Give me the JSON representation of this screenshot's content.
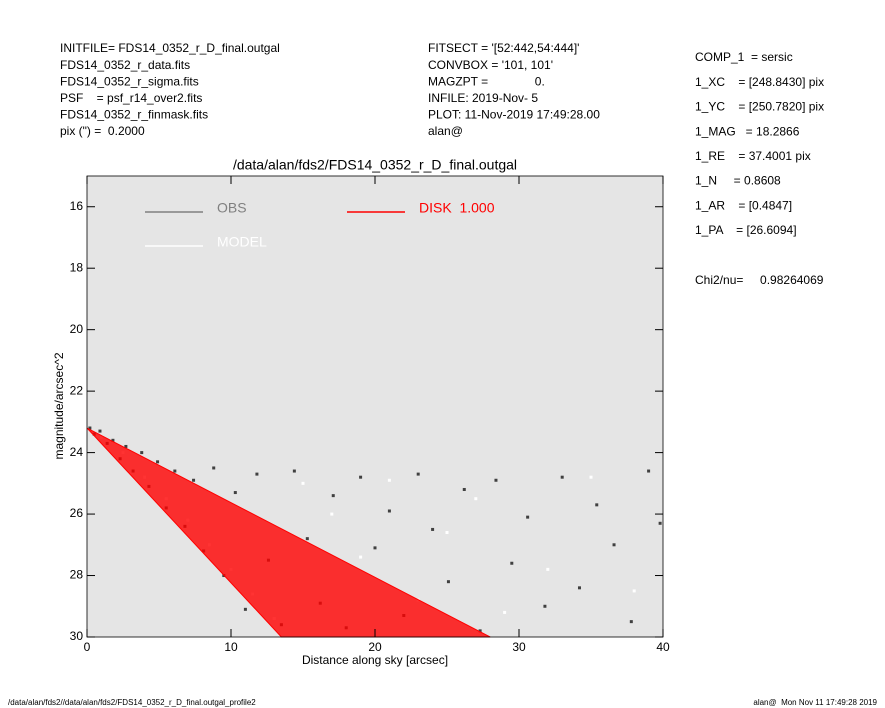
{
  "header": {
    "left": [
      "INITFILE= FDS14_0352_r_D_final.outgal",
      "FDS14_0352_r_data.fits",
      "FDS14_0352_r_sigma.fits",
      "PSF    = psf_r14_over2.fits",
      "FDS14_0352_r_finmask.fits",
      "pix (\") =  0.2000"
    ],
    "middle": [
      "FITSECT = '[52:442,54:444]'",
      "CONVBOX = '101, 101'",
      "MAGZPT =              0.",
      "INFILE: 2019-Nov- 5",
      "PLOT: 11-Nov-2019 17:49:28.00",
      "alan@"
    ],
    "right": [
      "COMP_1  = sersic",
      "1_XC    = [248.8430] pix",
      "1_YC    = [250.7820] pix",
      "1_MAG   = 18.2866",
      "1_RE    = 37.4001 pix",
      "1_N     = 0.8608",
      "1_AR    = [0.4847]",
      "1_PA    = [26.6094]"
    ],
    "chi2": "Chi2/nu=     0.98264069"
  },
  "footer": {
    "left": "/data/alan/fds2//data/alan/fds2/FDS14_0352_r_D_final.outgal_profile2",
    "right": "alan@  Mon Nov 11 17:49:28 2019"
  },
  "chart_data": {
    "type": "scatter",
    "title": "/data/alan/fds2/FDS14_0352_r_D_final.outgal",
    "x_label": "Distance along sky [arcsec]",
    "y_label": "magnitude/arcsec^2",
    "xlim": [
      0,
      40
    ],
    "xticks": [
      0,
      10,
      20,
      30,
      40
    ],
    "ylim": [
      30,
      15
    ],
    "yticks": [
      16,
      18,
      20,
      22,
      24,
      26,
      28,
      30
    ],
    "series": [
      {
        "name": "OBS",
        "color": "#404040",
        "legend_color": "#808080",
        "x": [
          0.2,
          0.5,
          0.9,
          1.4,
          1.8,
          2.3,
          2.7,
          3.2,
          3.8,
          4.3,
          4.9,
          5.5,
          6.1,
          6.8,
          7.4,
          8.1,
          8.8,
          9.5,
          10.3,
          11.0,
          11.8,
          12.6,
          13.5,
          14.4,
          15.3,
          16.2,
          17.1,
          18.0,
          19.0,
          20.0,
          21.0,
          22.0,
          23.0,
          24.0,
          25.1,
          26.2,
          27.3,
          28.4,
          29.5,
          30.6,
          31.8,
          33.0,
          34.2,
          35.4,
          36.6,
          37.8,
          39.0,
          39.8
        ],
        "values": [
          23.2,
          23.4,
          23.3,
          23.7,
          23.6,
          24.2,
          23.8,
          24.6,
          24.0,
          25.1,
          24.3,
          25.8,
          24.6,
          26.4,
          24.9,
          27.2,
          24.5,
          28.0,
          25.3,
          29.1,
          24.7,
          27.5,
          29.6,
          24.6,
          26.8,
          28.9,
          25.4,
          29.7,
          24.8,
          27.1,
          25.9,
          29.3,
          24.7,
          26.5,
          28.2,
          25.2,
          29.8,
          24.9,
          27.6,
          26.1,
          29.0,
          24.8,
          28.4,
          25.7,
          27.0,
          29.5,
          24.6,
          26.3
        ]
      },
      {
        "name": "MODEL",
        "color": "#ffffff",
        "legend_color": "#ffffff",
        "x": [
          1.0,
          2.5,
          4.0,
          5.5,
          7.0,
          8.5,
          10.0,
          11.5,
          13.0,
          15.0,
          17.0,
          19.0,
          21.0,
          23.0,
          25.0,
          27.0,
          29.0,
          32.0,
          35.0,
          38.0
        ],
        "values": [
          23.5,
          24.0,
          24.8,
          25.5,
          26.2,
          27.0,
          27.8,
          28.6,
          29.4,
          25.0,
          26.0,
          27.4,
          24.9,
          28.8,
          26.6,
          25.5,
          29.2,
          27.8,
          24.8,
          28.5
        ]
      },
      {
        "name": "DISK  1.000",
        "color": "#ff0000",
        "legend_color": "#ff0000",
        "area": true,
        "x": [
          0,
          13.5,
          28
        ],
        "values": [
          23.2,
          30,
          30
        ]
      }
    ]
  }
}
